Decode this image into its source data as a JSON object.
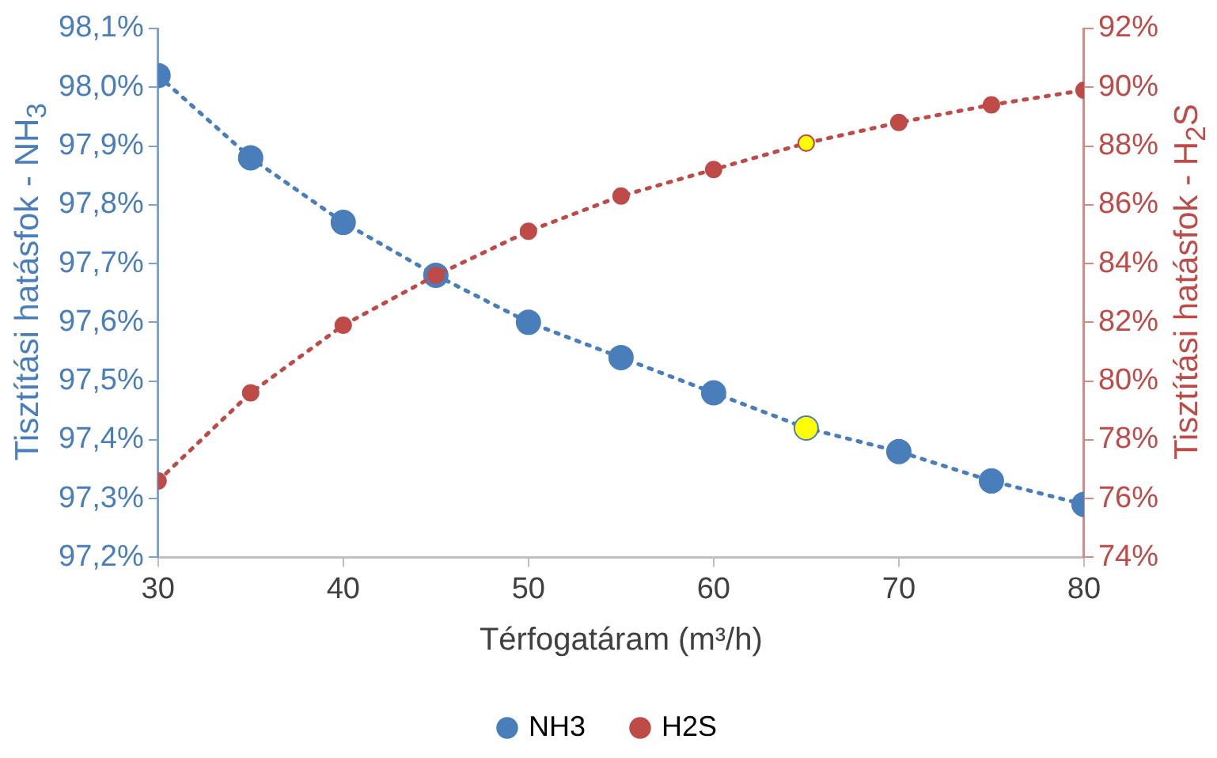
{
  "chart_data": {
    "type": "line",
    "xlabel": "Térfogatáram (m³/h)",
    "ylabel": "Tisztítási hatásfok - NH$_{3}$",
    "y2label": "Tisztítási hatásfok - H$_{2}$S",
    "x": [
      30,
      35,
      40,
      45,
      50,
      55,
      60,
      65,
      70,
      75,
      80
    ],
    "xlim": [
      30,
      80
    ],
    "xticks": [
      30,
      40,
      50,
      60,
      70,
      80
    ],
    "ylim": [
      97.2,
      98.1
    ],
    "yticks": [
      {
        "value": 97.2,
        "label": "97,2%"
      },
      {
        "value": 97.3,
        "label": "97,3%"
      },
      {
        "value": 97.4,
        "label": "97,4%"
      },
      {
        "value": 97.5,
        "label": "97,5%"
      },
      {
        "value": 97.6,
        "label": "97,6%"
      },
      {
        "value": 97.7,
        "label": "97,7%"
      },
      {
        "value": 97.8,
        "label": "97,8%"
      },
      {
        "value": 97.9,
        "label": "97,9%"
      },
      {
        "value": 98.0,
        "label": "98,0%"
      },
      {
        "value": 98.1,
        "label": "98,1%"
      }
    ],
    "y2lim": [
      74,
      92
    ],
    "y2ticks": [
      {
        "value": 74,
        "label": "74%"
      },
      {
        "value": 76,
        "label": "76%"
      },
      {
        "value": 78,
        "label": "78%"
      },
      {
        "value": 80,
        "label": "80%"
      },
      {
        "value": 82,
        "label": "82%"
      },
      {
        "value": 84,
        "label": "84%"
      },
      {
        "value": 86,
        "label": "86%"
      },
      {
        "value": 88,
        "label": "88%"
      },
      {
        "value": 90,
        "label": "90%"
      },
      {
        "value": 92,
        "label": "92%"
      }
    ],
    "series": [
      {
        "name": "NH3",
        "color": "#4a7ebb",
        "colors": [
          "#4a7ebb",
          "#4a7ebb",
          "#4a7ebb",
          "#4a7ebb",
          "#4a7ebb",
          "#4a7ebb",
          "#4a7ebb",
          "#ffff00",
          "#4a7ebb",
          "#4a7ebb",
          "#4a7ebb"
        ],
        "values": [
          98.02,
          97.88,
          97.77,
          97.68,
          97.6,
          97.54,
          97.48,
          97.42,
          97.38,
          97.33,
          97.29
        ]
      },
      {
        "name": "H2S",
        "color": "#be4b48",
        "axis": "y2",
        "colors": [
          "#be4b48",
          "#be4b48",
          "#be4b48",
          "#be4b48",
          "#be4b48",
          "#be4b48",
          "#be4b48",
          "#ffff00",
          "#be4b48",
          "#be4b48",
          "#be4b48"
        ],
        "values": [
          76.6,
          79.6,
          81.9,
          83.6,
          85.1,
          86.3,
          87.2,
          88.1,
          88.8,
          89.4,
          89.9
        ]
      }
    ],
    "grid": false,
    "legend": "bottom",
    "marker": "circle",
    "line_style": "dotted"
  }
}
